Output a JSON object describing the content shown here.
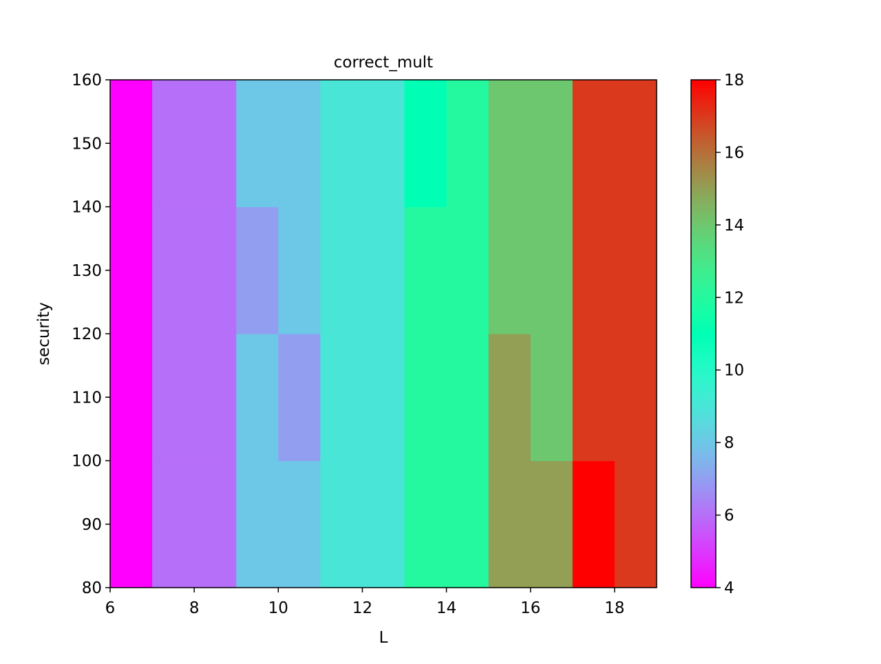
{
  "chart_data": {
    "type": "heatmap",
    "title": "correct_mult",
    "xlabel": "L",
    "ylabel": "security",
    "xlim": [
      6,
      19
    ],
    "ylim": [
      80,
      160
    ],
    "x_bins": [
      6,
      7,
      8,
      9,
      10,
      11,
      12,
      13,
      14,
      15,
      16,
      17,
      18,
      19
    ],
    "y_bins": [
      80,
      100,
      120,
      140,
      160
    ],
    "xticks": [
      6,
      8,
      10,
      12,
      14,
      16,
      18
    ],
    "yticks": [
      80,
      90,
      100,
      110,
      120,
      130,
      140,
      150,
      160
    ],
    "colormap": "rainbow",
    "colorbar": {
      "min": 4,
      "max": 18,
      "ticks": [
        4,
        6,
        8,
        10,
        12,
        14,
        16,
        18
      ]
    },
    "cells": [
      {
        "x": 6,
        "values": [
          4,
          4,
          4,
          4
        ]
      },
      {
        "x": 7,
        "values": [
          6,
          6,
          6,
          6
        ]
      },
      {
        "x": 8,
        "values": [
          6,
          6,
          6,
          6
        ]
      },
      {
        "x": 9,
        "values": [
          8,
          8,
          7,
          8
        ]
      },
      {
        "x": 10,
        "values": [
          8,
          7,
          8,
          8
        ]
      },
      {
        "x": 11,
        "values": [
          9,
          9,
          9,
          9
        ]
      },
      {
        "x": 12,
        "values": [
          9,
          9,
          9,
          9
        ]
      },
      {
        "x": 13,
        "values": [
          12,
          12,
          12,
          11
        ]
      },
      {
        "x": 14,
        "values": [
          12,
          12,
          12,
          12
        ]
      },
      {
        "x": 15,
        "values": [
          15,
          15,
          14,
          14
        ]
      },
      {
        "x": 16,
        "values": [
          15,
          14,
          14,
          14
        ]
      },
      {
        "x": 17,
        "values": [
          18,
          17,
          17,
          17
        ]
      },
      {
        "x": 18,
        "values": [
          17,
          17,
          17,
          17
        ]
      }
    ]
  }
}
